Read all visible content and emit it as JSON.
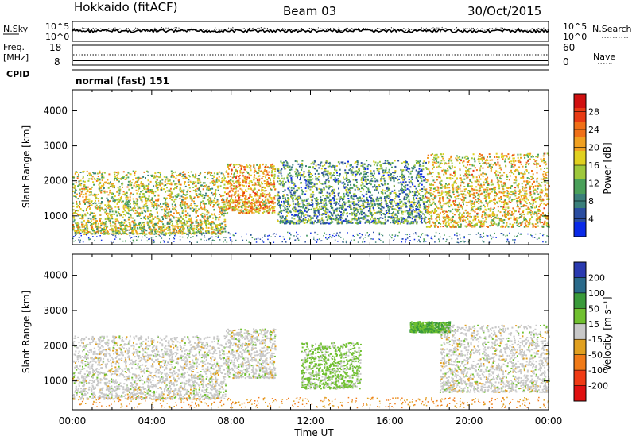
{
  "header": {
    "radar": "Hokkaido (fitACF)",
    "beam": "Beam 03",
    "date": "30/Oct/2015"
  },
  "panels": {
    "nsky": {
      "label": "N.Sky",
      "tick_top": "10^5",
      "tick_bottom": "10^0",
      "right_tick_top": "10^5",
      "right_tick_bottom": "10^0",
      "right_label": "N.Search"
    },
    "freq": {
      "label_line1": "Freq.",
      "label_line2": "[MHz]",
      "tick_top": "18",
      "tick_bottom": "8",
      "right_tick_top": "60",
      "right_tick_bottom": "0",
      "right_label": "Nave"
    },
    "cpid": {
      "label": "CPID",
      "text": "normal (fast) 151"
    }
  },
  "axes": {
    "ylabel": "Slant Range [km]",
    "xlabel": "Time UT",
    "x_ticks": [
      "00:00",
      "04:00",
      "08:00",
      "12:00",
      "16:00",
      "20:00",
      "00:00"
    ],
    "y_ticks": [
      "1000",
      "2000",
      "3000",
      "4000"
    ]
  },
  "colorbars": {
    "power": {
      "label": "Power [dB]",
      "ticks": [
        "4",
        "8",
        "12",
        "16",
        "20",
        "24",
        "28"
      ],
      "colors": [
        "#0a2ae8",
        "#2a4da0",
        "#3a7f7a",
        "#4aa05a",
        "#9ec83c",
        "#e0d020",
        "#f0a020",
        "#f07018",
        "#e83a14",
        "#d01010"
      ]
    },
    "velocity": {
      "label": "Velocity [m s⁻¹]",
      "ticks": [
        "200",
        "100",
        "50",
        "15",
        "-15",
        "-50",
        "-100",
        "-200"
      ],
      "colors": [
        "#2a3ab0",
        "#2a6a8a",
        "#3a9a3a",
        "#70c030",
        "#c8c8c8",
        "#e0a020",
        "#f07a18",
        "#f03a14",
        "#e01010"
      ]
    }
  },
  "chart_data": [
    {
      "type": "heatmap",
      "title": "Power",
      "xlabel": "Time UT",
      "ylabel": "Slant Range [km]",
      "x_range": [
        "00:00",
        "24:00"
      ],
      "ylim": [
        180,
        4600
      ],
      "colorbar": {
        "label": "Power [dB]",
        "ticks": [
          4,
          8,
          12,
          16,
          20,
          24,
          28
        ]
      },
      "echo_regions": [
        {
          "t_start": 0.0,
          "t_end": 7.7,
          "r_min": 500,
          "r_max": 2300,
          "power_db": 14
        },
        {
          "t_start": 7.7,
          "t_end": 10.2,
          "r_min": 1100,
          "r_max": 2500,
          "power_db": 18
        },
        {
          "t_start": 10.3,
          "t_end": 17.8,
          "r_min": 800,
          "r_max": 2600,
          "power_db": 8
        },
        {
          "t_start": 17.8,
          "t_end": 24.0,
          "r_min": 700,
          "r_max": 2800,
          "power_db": 16
        }
      ]
    },
    {
      "type": "heatmap",
      "title": "Velocity",
      "xlabel": "Time UT",
      "ylabel": "Slant Range [km]",
      "x_range": [
        "00:00",
        "24:00"
      ],
      "ylim": [
        180,
        4600
      ],
      "colorbar": {
        "label": "Velocity [m s⁻¹]",
        "ticks": [
          200,
          100,
          50,
          15,
          -15,
          -50,
          -100,
          -200
        ]
      },
      "echo_regions": [
        {
          "t_start": 0.0,
          "t_end": 7.7,
          "r_min": 500,
          "r_max": 2300,
          "velocity": 0
        },
        {
          "t_start": 7.7,
          "t_end": 10.2,
          "r_min": 1100,
          "r_max": 2500,
          "velocity": 0
        },
        {
          "t_start": 11.5,
          "t_end": 14.5,
          "r_min": 800,
          "r_max": 2100,
          "velocity": 40
        },
        {
          "t_start": 17.0,
          "t_end": 19.0,
          "r_min": 2400,
          "r_max": 2700,
          "velocity": 80
        },
        {
          "t_start": 18.5,
          "t_end": 24.0,
          "r_min": 700,
          "r_max": 2600,
          "velocity": 0
        }
      ]
    }
  ]
}
